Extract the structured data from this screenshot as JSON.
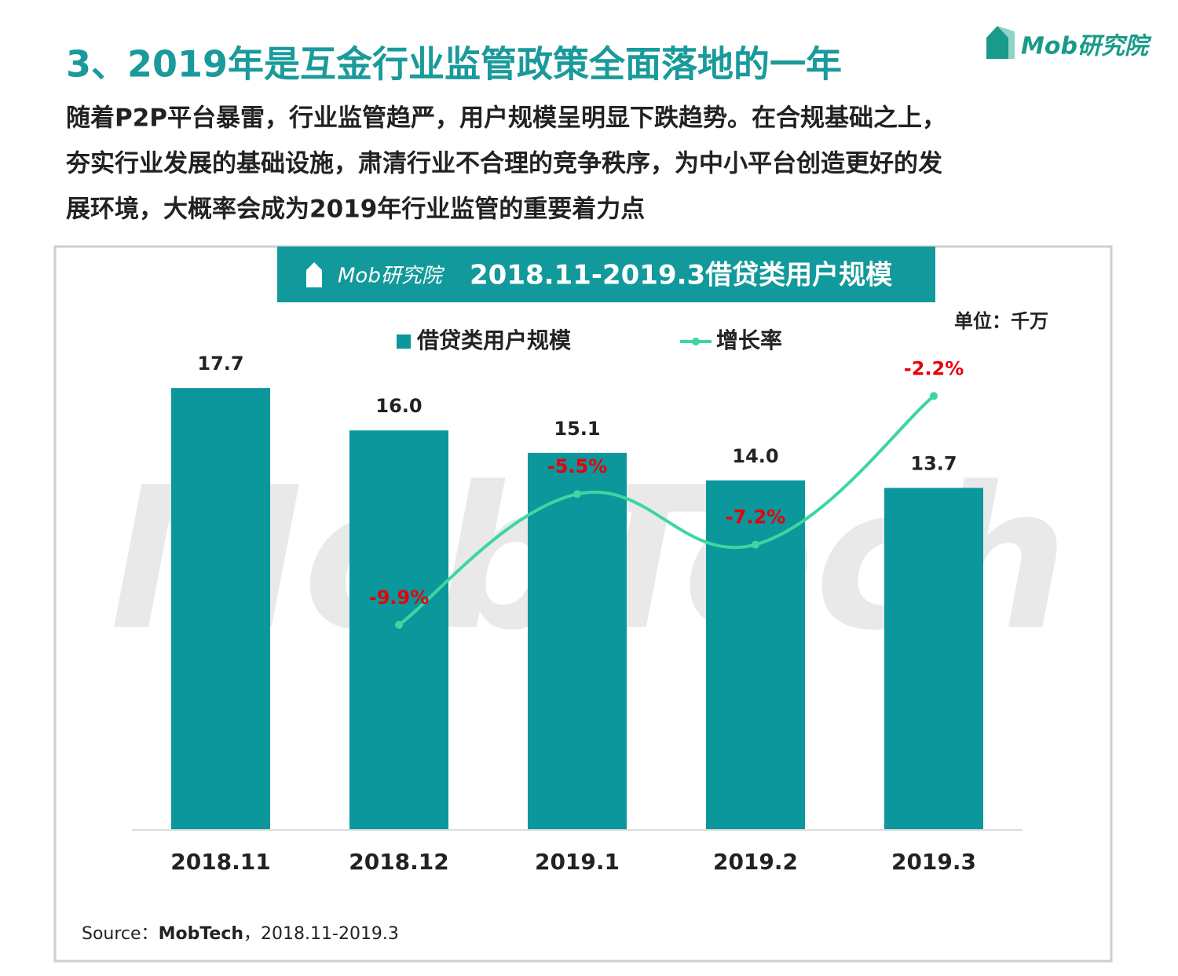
{
  "logo": "Mob研究院",
  "watermark": "MobTech",
  "title": "3、2019年是互金行业监管政策全面落地的一年",
  "subtitle": [
    "随着P2P平台暴雷，行业监管趋严，用户规模呈明显下跌趋势。在合规基础之上，",
    "夯实行业发展的基础设施，肃清行业不合理的竞争秩序，为中小平台创造更好的发",
    "展环境，大概率会成为2019年行业监管的重要着力点"
  ],
  "chart_data": {
    "type": "bar_line",
    "logo": "Mob研究院",
    "title": "2018.11-2019.3借贷类用户规模",
    "unit": "单位：千万",
    "categories": [
      "2018.11",
      "2018.12",
      "2019.1",
      "2019.2",
      "2019.3"
    ],
    "series": [
      {
        "name": "借贷类用户规模",
        "type": "bar",
        "color": "#0b979b",
        "values": [
          17.7,
          16.0,
          15.1,
          14.0,
          13.7
        ],
        "value_labels": [
          "17.7",
          "16.0",
          "15.1",
          "14.0",
          "13.7"
        ],
        "label_color": "#222222"
      },
      {
        "name": "增长率",
        "type": "line",
        "axis": "y2",
        "color": "#3dd6a0",
        "values": [
          null,
          -9.9,
          -5.5,
          -7.2,
          -2.2
        ],
        "value_labels": [
          null,
          "-9.9%",
          "-5.5%",
          "-7.2%",
          "-2.2%"
        ],
        "label_color": "#e8000b"
      }
    ],
    "ylim": [
      0,
      20
    ],
    "y2lim": [
      -16.8,
      0
    ],
    "source": [
      "Source：",
      "MobTech",
      "，2018.11-2019.3"
    ]
  }
}
